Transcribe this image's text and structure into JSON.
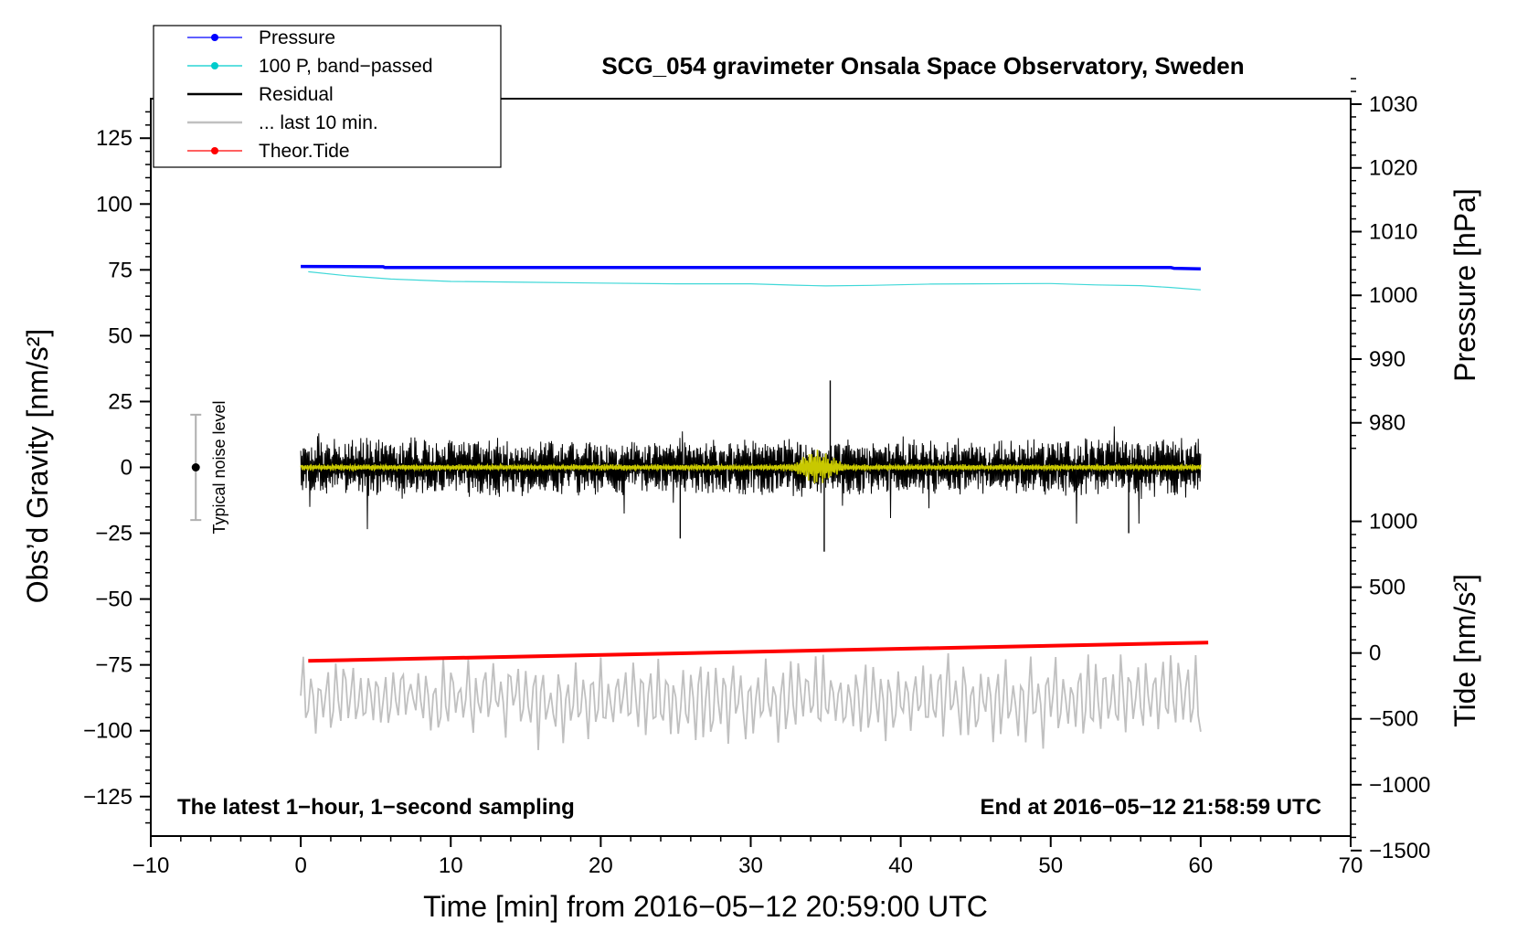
{
  "chart_data": {
    "type": "line",
    "title": "SCG_054 gravimeter Onsala Space Observatory, Sweden",
    "subtitle_left": "The latest 1−hour, 1−second sampling",
    "subtitle_right": "End at 2016−05−12 21:58:59 UTC",
    "xlabel": "Time [min] from 2016−05−12 20:59:00 UTC",
    "ylabel_left": "Obs’d Gravity [nm/s²]",
    "ylabel_right_top": "Pressure [hPa]",
    "ylabel_right_bottom": "Tide [nm/s²]",
    "xlim": [
      -10,
      70
    ],
    "ylim": [
      -140,
      140
    ],
    "x_ticks": [
      -10,
      0,
      10,
      20,
      30,
      40,
      50,
      60,
      70
    ],
    "x_tick_labels": [
      "−10",
      "0",
      "10",
      "20",
      "30",
      "40",
      "50",
      "60",
      "70"
    ],
    "y_ticks": [
      125,
      100,
      75,
      50,
      25,
      0,
      -25,
      -50,
      -75,
      -100,
      -125
    ],
    "y_tick_labels": [
      "125",
      "100",
      "75",
      "50",
      "25",
      "0",
      "−25",
      "−50",
      "−75",
      "−100",
      "−125"
    ],
    "pressure_axis": {
      "ticks": [
        980,
        990,
        1000,
        1010,
        1020,
        1030
      ],
      "tick_labels": [
        "980",
        "990",
        "1000",
        "1010",
        "1020",
        "1030"
      ],
      "offset_nm": 75,
      "hPa_at_offset": 1004,
      "nm_per_hPa": 2.42
    },
    "tide_axis": {
      "ticks": [
        1000,
        500,
        0,
        -500,
        -1000,
        -1500
      ],
      "tick_labels": [
        "1000",
        "500",
        "0",
        "−500",
        "−1000",
        "−1500"
      ],
      "offset_nm": -70.5,
      "nm_per_unit": 0.05
    },
    "legend": [
      {
        "label": "Pressure",
        "color": "#0000ff",
        "marker": true
      },
      {
        "label": "100 P, band−passed",
        "color": "#00cccc",
        "marker": true
      },
      {
        "label": "Residual",
        "color": "#000000",
        "marker": false
      },
      {
        "label": "... last 10 min.",
        "color": "#c0c0c0",
        "marker": false
      },
      {
        "label": "Theor.Tide",
        "color": "#ff0000",
        "marker": true
      }
    ],
    "noise_bar": {
      "x": -7,
      "center": 0,
      "low": -20,
      "high": 20,
      "label": "Typical noise level"
    },
    "series": [
      {
        "name": "Pressure",
        "color": "#0000ff",
        "width": 3.5,
        "x": [
          0,
          5.5,
          5.6,
          58,
          58.2,
          60
        ],
        "y": [
          76.3,
          76.2,
          75.9,
          75.9,
          75.6,
          75.4
        ]
      },
      {
        "name": "100 P, band−passed",
        "color": "#40d8d8",
        "width": 1.2,
        "x": [
          0.5,
          3,
          6,
          10,
          15,
          20,
          25,
          30,
          33,
          35,
          38,
          42,
          45,
          50,
          53,
          56,
          58,
          60
        ],
        "y": [
          74.3,
          72.8,
          71.5,
          70.6,
          70.3,
          70.0,
          69.7,
          69.7,
          69.2,
          68.9,
          69.1,
          69.6,
          69.7,
          69.8,
          69.3,
          69.0,
          68.3,
          67.4
        ]
      },
      {
        "name": "Theor.Tide",
        "color": "#ff0000",
        "width": 4,
        "x": [
          0.5,
          60.5
        ],
        "y": [
          -73.5,
          -66.5
        ]
      }
    ],
    "residual": {
      "name": "Residual",
      "color": "#000000",
      "x_start": 0,
      "x_end": 60,
      "n_points": 1500,
      "typical_amplitude": 8,
      "extremes": [
        {
          "x": 35.3,
          "y": 33
        },
        {
          "x": 34.9,
          "y": -32
        },
        {
          "x": 25.3,
          "y": -27
        },
        {
          "x": 55.2,
          "y": -25
        }
      ]
    },
    "residual_filtered": {
      "name": "Residual (smoothed)",
      "color": "#c8c800",
      "x_start": 0,
      "x_end": 60,
      "burst_center": 34.5,
      "burst_amplitude": 6
    },
    "last_10_min": {
      "name": "... last 10 min.",
      "color": "#c0c0c0",
      "x_start": 0,
      "x_end": 60,
      "center": -88,
      "amplitude_range": [
        -111,
        -62
      ]
    }
  }
}
